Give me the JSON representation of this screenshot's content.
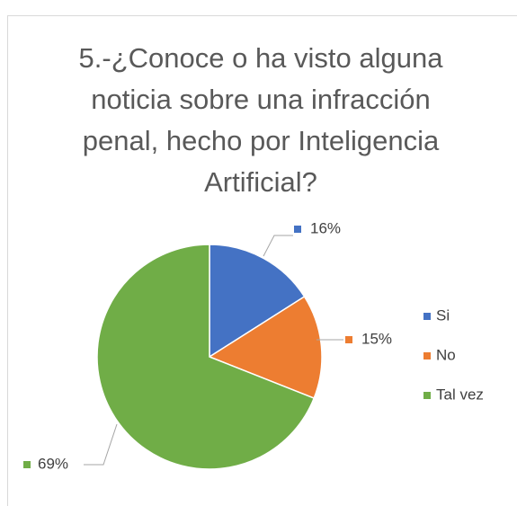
{
  "chart_data": {
    "type": "pie",
    "title": "5.-¿Conoce o ha visto alguna noticia sobre una infracción penal, hecho por Inteligencia Artificial?",
    "categories": [
      "Si",
      "No",
      "Tal vez"
    ],
    "values": [
      16,
      15,
      69
    ],
    "value_labels": [
      "16%",
      "15%",
      "69%"
    ],
    "colors": [
      "#4472c4",
      "#ed7d31",
      "#70ad47"
    ],
    "legend": "right"
  }
}
